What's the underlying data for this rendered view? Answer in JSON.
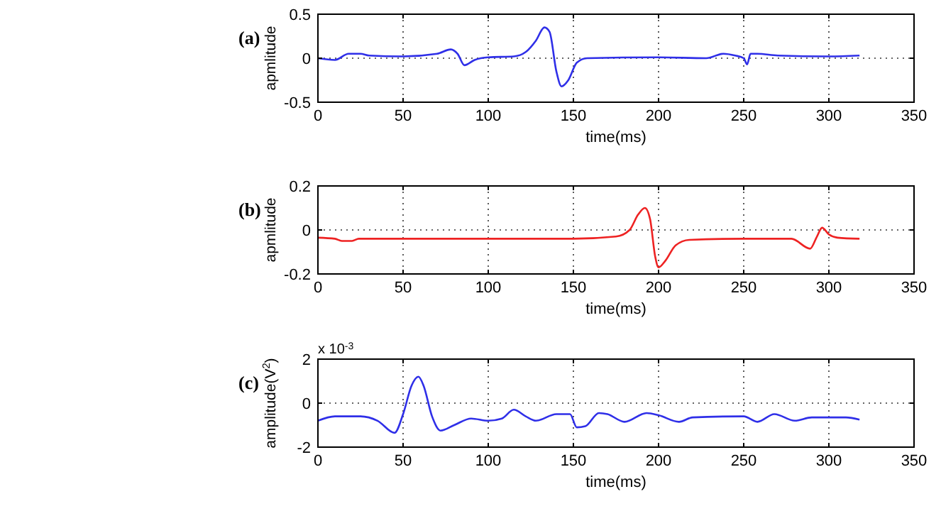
{
  "chart_data": [
    {
      "type": "line",
      "title": "(a)",
      "xlabel": "time(ms)",
      "ylabel": "apmlitude",
      "xlim": [
        0,
        350
      ],
      "xticks": [
        0,
        50,
        100,
        150,
        200,
        250,
        300,
        350
      ],
      "ylim": [
        -0.5,
        0.5
      ],
      "yticks": [
        -0.5,
        0,
        0.5
      ],
      "grid": true,
      "x": [
        0,
        10,
        18,
        25,
        30,
        50,
        70,
        78,
        82,
        86,
        92,
        100,
        115,
        122,
        128,
        133,
        136,
        140,
        143,
        147,
        152,
        158,
        200,
        228,
        238,
        245,
        250,
        252,
        254,
        258,
        270,
        300,
        318
      ],
      "series": [
        {
          "color": "#2f2fe8",
          "values": [
            0.0,
            -0.02,
            0.05,
            0.05,
            0.03,
            0.02,
            0.05,
            0.1,
            0.05,
            -0.08,
            -0.02,
            0.01,
            0.02,
            0.07,
            0.2,
            0.35,
            0.3,
            -0.15,
            -0.32,
            -0.25,
            -0.05,
            0.0,
            0.01,
            0.0,
            0.05,
            0.03,
            0.0,
            -0.07,
            0.05,
            0.05,
            0.03,
            0.02,
            0.03
          ]
        }
      ]
    },
    {
      "type": "line",
      "title": "(b)",
      "xlabel": "time(ms)",
      "ylabel": "apmlitude",
      "xlim": [
        0,
        350
      ],
      "xticks": [
        0,
        50,
        100,
        150,
        200,
        250,
        300,
        350
      ],
      "ylim": [
        -0.2,
        0.2
      ],
      "yticks": [
        -0.2,
        0,
        0.2
      ],
      "grid": true,
      "x": [
        0,
        10,
        14,
        20,
        24,
        50,
        100,
        150,
        175,
        183,
        188,
        192,
        195,
        198,
        200,
        204,
        210,
        218,
        250,
        278,
        289,
        293,
        296,
        300,
        305,
        318
      ],
      "series": [
        {
          "color": "#ee2222",
          "values": [
            -0.035,
            -0.04,
            -0.05,
            -0.05,
            -0.04,
            -0.04,
            -0.04,
            -0.04,
            -0.03,
            0.0,
            0.07,
            0.1,
            0.05,
            -0.12,
            -0.17,
            -0.14,
            -0.07,
            -0.045,
            -0.04,
            -0.04,
            -0.085,
            -0.03,
            0.01,
            -0.02,
            -0.035,
            -0.04
          ]
        }
      ]
    },
    {
      "type": "line",
      "title": "(c)",
      "xlabel": "time(ms)",
      "ylabel": "amplitude(V$^{2}$)",
      "annotations": [
        "x 10$^{-3}$"
      ],
      "xlim": [
        0,
        350
      ],
      "xticks": [
        0,
        50,
        100,
        150,
        200,
        250,
        300,
        350
      ],
      "ylim": [
        -2,
        2
      ],
      "yticks": [
        -2,
        0,
        2
      ],
      "grid": true,
      "x": [
        0,
        10,
        25,
        35,
        45,
        50,
        55,
        59,
        62,
        67,
        72,
        80,
        90,
        100,
        108,
        115,
        122,
        128,
        140,
        148,
        152,
        157,
        165,
        170,
        180,
        193,
        200,
        212,
        220,
        250,
        258,
        268,
        280,
        290,
        310,
        318
      ],
      "series": [
        {
          "color": "#2f2fe8",
          "values": [
            -0.8,
            -0.6,
            -0.6,
            -0.8,
            -1.35,
            -0.5,
            0.8,
            1.2,
            0.8,
            -0.6,
            -1.25,
            -1.0,
            -0.7,
            -0.8,
            -0.7,
            -0.3,
            -0.6,
            -0.8,
            -0.5,
            -0.5,
            -1.1,
            -1.05,
            -0.45,
            -0.5,
            -0.85,
            -0.45,
            -0.55,
            -0.85,
            -0.65,
            -0.6,
            -0.85,
            -0.5,
            -0.8,
            -0.65,
            -0.65,
            -0.75
          ]
        }
      ]
    }
  ]
}
